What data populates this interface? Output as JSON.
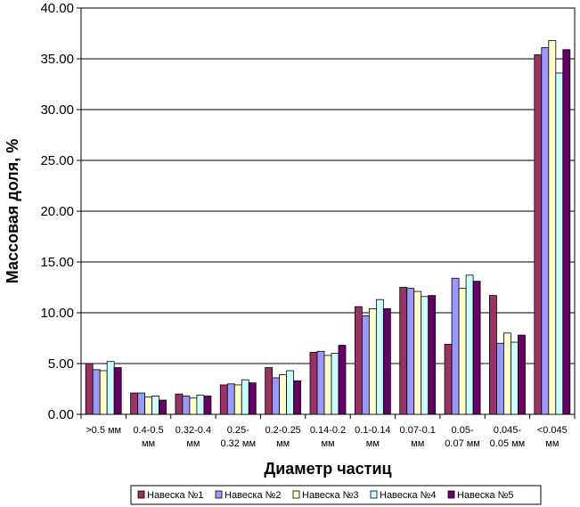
{
  "chart_data": {
    "type": "bar",
    "xlabel": "Диаметр частиц",
    "ylabel": "Массовая доля, %",
    "ylim": [
      0,
      40
    ],
    "yticks": [
      "0.00",
      "5.00",
      "10.00",
      "15.00",
      "20.00",
      "25.00",
      "30.00",
      "35.00",
      "40.00"
    ],
    "grid": true,
    "legend_position": "bottom",
    "categories": [
      [
        ">0.5 мм"
      ],
      [
        "0.4-0.5",
        "мм"
      ],
      [
        "0.32-0.4",
        "мм"
      ],
      [
        "0.25-",
        "0.32 мм"
      ],
      [
        "0.2-0.25",
        "мм"
      ],
      [
        "0.14-0.2",
        "мм"
      ],
      [
        "0.1-0.14",
        "мм"
      ],
      [
        "0.07-0.1",
        "мм"
      ],
      [
        "0.05-",
        "0.07 мм"
      ],
      [
        "0.045-",
        "0.05 мм"
      ],
      [
        "<0.045",
        "мм"
      ]
    ],
    "series": [
      {
        "name": "Навеска №1",
        "color": "#993366",
        "values": [
          5.0,
          2.1,
          2.0,
          2.9,
          4.6,
          6.1,
          10.6,
          12.5,
          6.9,
          11.7,
          35.4
        ]
      },
      {
        "name": "Навеска №2",
        "color": "#9999FF",
        "values": [
          4.4,
          2.1,
          1.8,
          3.0,
          3.6,
          6.2,
          9.7,
          12.4,
          13.4,
          7.0,
          36.1
        ]
      },
      {
        "name": "Навеска №3",
        "color": "#FFFFCC",
        "values": [
          4.3,
          1.7,
          1.6,
          2.9,
          3.9,
          5.8,
          10.4,
          12.1,
          12.4,
          8.0,
          36.8
        ]
      },
      {
        "name": "Навеска №4",
        "color": "#CCFFFF",
        "values": [
          5.2,
          1.8,
          1.9,
          3.4,
          4.3,
          6.0,
          11.3,
          11.6,
          13.7,
          7.1,
          33.6
        ]
      },
      {
        "name": "Навеска №5",
        "color": "#660066",
        "values": [
          4.6,
          1.4,
          1.8,
          3.1,
          3.3,
          6.8,
          10.4,
          11.7,
          13.1,
          7.8,
          35.9
        ]
      }
    ]
  }
}
